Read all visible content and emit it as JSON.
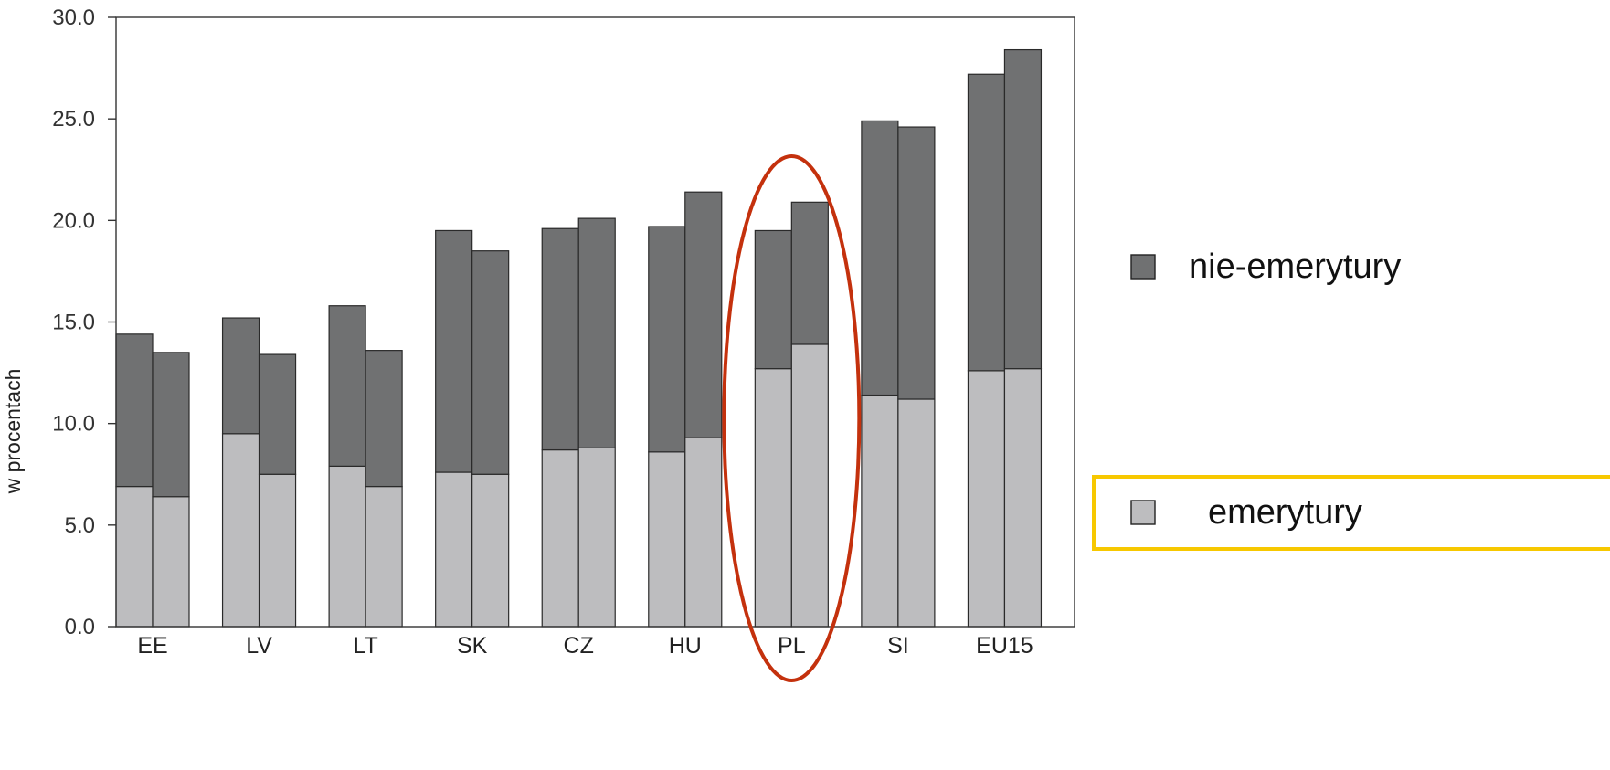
{
  "chart_data": {
    "type": "bar",
    "stacked": true,
    "grouped_pairs": true,
    "categories": [
      "EE",
      "LV",
      "LT",
      "SK",
      "CZ",
      "HU",
      "PL",
      "SI",
      "EU15"
    ],
    "ylabel": "w procentach",
    "xlabel": "",
    "ylim": [
      0,
      30
    ],
    "yticks": [
      "0.0",
      "5.0",
      "10.0",
      "15.0",
      "20.0",
      "25.0",
      "30.0"
    ],
    "grid": false,
    "legend_position": "right",
    "series": [
      {
        "name": "emerytury",
        "color": "#bdbdbf",
        "values": [
          [
            6.9,
            6.4
          ],
          [
            9.5,
            7.5
          ],
          [
            7.9,
            6.9
          ],
          [
            7.6,
            7.5
          ],
          [
            8.7,
            8.8
          ],
          [
            8.6,
            9.3
          ],
          [
            12.7,
            13.9
          ],
          [
            11.4,
            11.2
          ],
          [
            12.6,
            12.7
          ]
        ]
      },
      {
        "name": "nie-emerytury",
        "color": "#707172",
        "values": [
          [
            7.5,
            7.1
          ],
          [
            5.7,
            5.9
          ],
          [
            7.9,
            6.7
          ],
          [
            11.9,
            11.0
          ],
          [
            10.9,
            11.3
          ],
          [
            11.1,
            12.1
          ],
          [
            6.8,
            7.0
          ],
          [
            13.5,
            13.4
          ],
          [
            14.6,
            15.7
          ]
        ]
      }
    ],
    "highlight": {
      "category": "PL",
      "shape": "ellipse",
      "color": "#c4310d"
    },
    "legend_highlight": {
      "entry": "emerytury",
      "shape": "rectangle",
      "color": "#f7c800"
    }
  }
}
